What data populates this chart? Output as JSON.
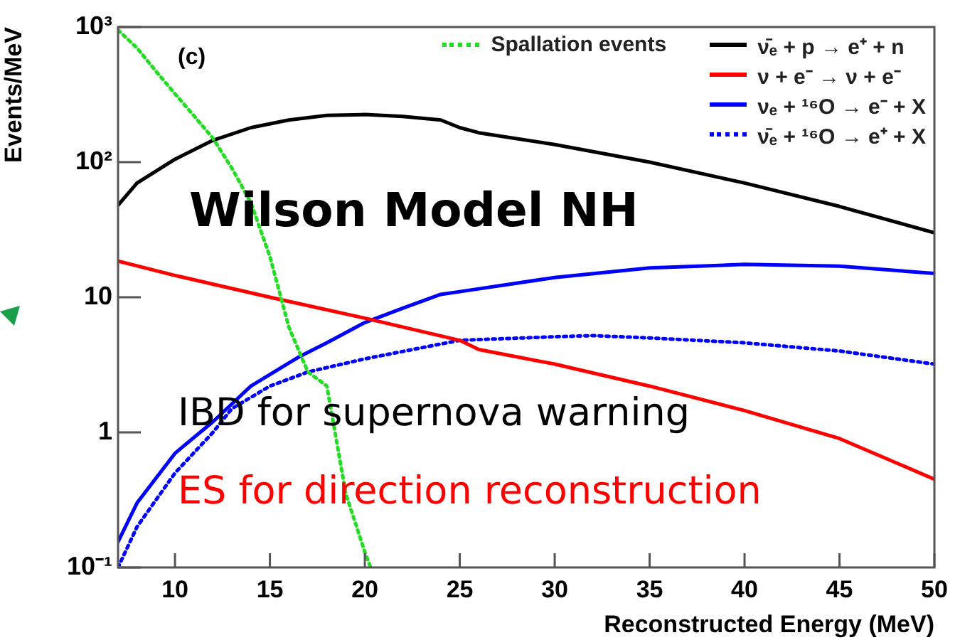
{
  "chart_data": {
    "type": "line",
    "xlabel": "Reconstructed Energy (MeV)",
    "ylabel": "Events/MeV",
    "log": "y",
    "grid": false,
    "legend": "top right",
    "marker": "none",
    "xlim": [
      7,
      50
    ],
    "xticks": [
      10,
      15,
      20,
      25,
      30,
      35,
      40,
      45,
      50
    ],
    "ylim": [
      0.1,
      1000
    ],
    "yticks": [
      {
        "value": 0.1,
        "label": "10⁻¹"
      },
      1,
      10,
      {
        "value": 100,
        "label": "10²"
      },
      {
        "value": 1000,
        "label": "10³"
      }
    ],
    "annotations": [
      "(c)",
      "Wilson Model NH",
      "IBD for supernova warning",
      "ES for direction reconstruction"
    ],
    "series": [
      {
        "name": "Spallation events",
        "color": "#22dd22",
        "line_style": "dotted",
        "x": [
          7,
          8,
          9,
          10,
          11,
          12,
          13,
          14,
          15,
          16,
          17,
          18,
          19,
          20,
          20.3
        ],
        "values": [
          950,
          700,
          470,
          320,
          220,
          150,
          90,
          50,
          20,
          6,
          2.8,
          2.2,
          0.35,
          0.13,
          0.1
        ]
      },
      {
        "name": "ν̄ₑ + p → e⁺ + n",
        "color": "#000000",
        "line_style": "solid",
        "x": [
          7,
          8,
          10,
          12,
          14,
          16,
          18,
          20,
          22,
          24,
          25,
          26,
          30,
          35,
          40,
          45,
          50
        ],
        "values": [
          48,
          70,
          105,
          145,
          180,
          205,
          222,
          225,
          218,
          205,
          180,
          165,
          135,
          100,
          70,
          47,
          30
        ]
      },
      {
        "name": "ν + e⁻ → ν + e⁻",
        "color": "#ff0000",
        "line_style": "solid",
        "x": [
          7,
          10,
          15,
          20,
          25,
          26,
          30,
          35,
          40,
          45,
          50
        ],
        "values": [
          18.5,
          14.5,
          10,
          7,
          4.8,
          4.1,
          3.2,
          2.2,
          1.45,
          0.9,
          0.45
        ]
      },
      {
        "name": "νₑ + ¹⁶O → e⁻ + X",
        "color": "#0000ff",
        "line_style": "solid",
        "x": [
          7,
          8,
          10,
          12,
          14,
          16.5,
          18,
          20,
          22,
          24,
          25,
          30,
          35,
          40,
          45,
          50
        ],
        "values": [
          0.155,
          0.3,
          0.7,
          1.2,
          2.2,
          3.6,
          4.6,
          6.5,
          8.3,
          10.5,
          11,
          14,
          16.5,
          17.5,
          17,
          15
        ]
      },
      {
        "name": "ν̄ₑ + ¹⁶O → e⁺ + X",
        "color": "#0000ff",
        "line_style": "dotted",
        "x": [
          7,
          8,
          10,
          12,
          13,
          15,
          17,
          20,
          25,
          30,
          32,
          35,
          40,
          45,
          50
        ],
        "values": [
          0.1,
          0.2,
          0.5,
          1.0,
          1.5,
          2.2,
          2.8,
          3.5,
          4.8,
          5.1,
          5.2,
          5.0,
          4.6,
          4.0,
          3.2
        ]
      }
    ]
  }
}
